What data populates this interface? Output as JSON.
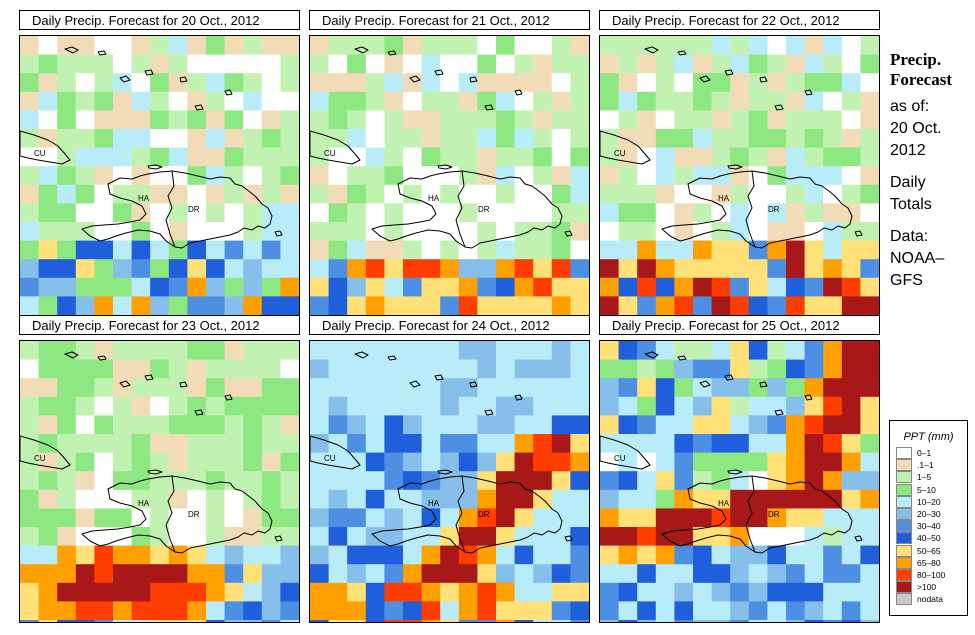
{
  "panels": [
    {
      "title": "Daily Precip. Forecast for  20 Oct., 2012",
      "scenario": 0
    },
    {
      "title": "Daily Precip. Forecast for  21 Oct., 2012",
      "scenario": 1
    },
    {
      "title": "Daily Precip. Forecast for  22 Oct., 2012",
      "scenario": 2
    },
    {
      "title": "Daily Precip. Forecast for  23 Oct., 2012",
      "scenario": 3
    },
    {
      "title": "Daily Precip. Forecast for  24 Oct., 2012",
      "scenario": 4
    },
    {
      "title": "Daily Precip. Forecast for  25 Oct., 2012",
      "scenario": 5
    }
  ],
  "map_labels": {
    "cuba": "CU",
    "haiti": "HA",
    "dominican_republic": "DR"
  },
  "sidebar": {
    "title_line1": "Precip.",
    "title_line2": "Forecast",
    "as_of": "as of:",
    "date_line1": "20 Oct.",
    "date_line2": "2012",
    "totals_line1": "Daily",
    "totals_line2": "Totals",
    "data_line1": "Data:",
    "data_line2": "NOAA–",
    "data_line3": "GFS"
  },
  "legend": {
    "title": "PPT (mm)",
    "items": [
      {
        "label": "0–1",
        "color": "#ffffff"
      },
      {
        "label": ".1–1",
        "color": "#f2dcb8"
      },
      {
        "label": "1–5",
        "color": "#c2f2b2"
      },
      {
        "label": "5–10",
        "color": "#8ee882"
      },
      {
        "label": "10–20",
        "color": "#b8ecf8"
      },
      {
        "label": "20–30",
        "color": "#86bfea"
      },
      {
        "label": "30–40",
        "color": "#4d8fe2"
      },
      {
        "label": "40–50",
        "color": "#1f5fdc"
      },
      {
        "label": "50–65",
        "color": "#ffe178"
      },
      {
        "label": "65–80",
        "color": "#ff9f00"
      },
      {
        "label": "80–100",
        "color": "#ff3d00"
      },
      {
        "label": ">100",
        "color": "#a81818"
      },
      {
        "label": "nodata",
        "color": "#c8c8c8"
      }
    ]
  }
}
